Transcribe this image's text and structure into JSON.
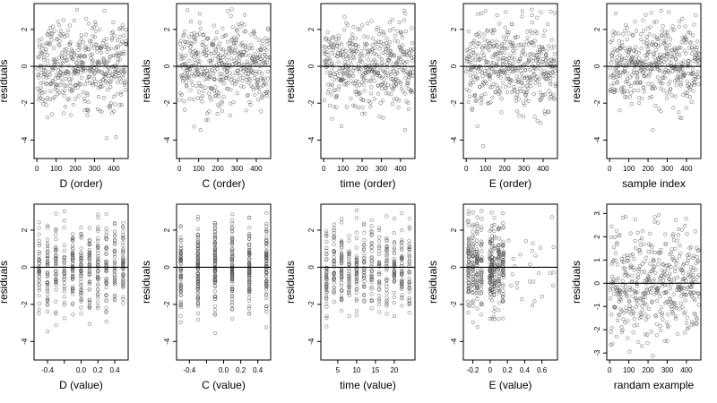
{
  "chart_data": [
    {
      "type": "scatter",
      "xlabel": "D (order)",
      "ylabel": "residuals",
      "xlim": [
        -15,
        475
      ],
      "ylim": [
        -5,
        3.4
      ],
      "xticks": [
        0,
        100,
        200,
        300,
        400
      ],
      "yticks": [
        -4,
        -2,
        0,
        2
      ],
      "hline": 0,
      "sim": {
        "kind": "index",
        "n": 450
      }
    },
    {
      "type": "scatter",
      "xlabel": "C (order)",
      "ylabel": "residuals",
      "xlim": [
        -15,
        475
      ],
      "ylim": [
        -5,
        3.4
      ],
      "xticks": [
        0,
        100,
        200,
        300,
        400
      ],
      "yticks": [
        -4,
        -2,
        0,
        2
      ],
      "hline": 0,
      "sim": {
        "kind": "index",
        "n": 450
      }
    },
    {
      "type": "scatter",
      "xlabel": "time (order)",
      "ylabel": "residuals",
      "xlim": [
        -15,
        475
      ],
      "ylim": [
        -5,
        3.4
      ],
      "xticks": [
        0,
        100,
        200,
        300,
        400
      ],
      "yticks": [
        -4,
        -2,
        0,
        2
      ],
      "hline": 0,
      "sim": {
        "kind": "index",
        "n": 450
      }
    },
    {
      "type": "scatter",
      "xlabel": "E (order)",
      "ylabel": "residuals",
      "xlim": [
        -15,
        475
      ],
      "ylim": [
        -5,
        3.4
      ],
      "xticks": [
        0,
        100,
        200,
        300,
        400
      ],
      "yticks": [
        -4,
        -2,
        0,
        2
      ],
      "hline": 0,
      "sim": {
        "kind": "index",
        "n": 450
      }
    },
    {
      "type": "scatter",
      "xlabel": "sample index",
      "ylabel": "residuals",
      "xlim": [
        -15,
        475
      ],
      "ylim": [
        -5,
        3.4
      ],
      "xticks": [
        0,
        100,
        200,
        300,
        400
      ],
      "yticks": [
        -4,
        -2,
        0,
        2
      ],
      "hline": 0,
      "sim": {
        "kind": "index",
        "n": 450
      }
    },
    {
      "type": "scatter",
      "xlabel": "D (value)",
      "ylabel": "residuals",
      "xlim": [
        -0.56,
        0.56
      ],
      "ylim": [
        -5,
        3.4
      ],
      "xticks": [
        -0.4,
        -0.2,
        0.0,
        0.2,
        0.4
      ],
      "xtick_labels": [
        "-0.4",
        "",
        "0.0",
        "0.2",
        "0.4"
      ],
      "yticks": [
        -4,
        -2,
        0,
        2
      ],
      "hline": 0,
      "sim": {
        "kind": "levels",
        "n": 450,
        "levels": [
          -0.5,
          -0.4,
          -0.3,
          -0.2,
          -0.1,
          0.0,
          0.1,
          0.2,
          0.3,
          0.4,
          0.5
        ]
      }
    },
    {
      "type": "scatter",
      "xlabel": "C (value)",
      "ylabel": "residuals",
      "xlim": [
        -0.55,
        0.55
      ],
      "ylim": [
        -5,
        3.4
      ],
      "xticks": [
        -0.4,
        -0.2,
        0.0,
        0.2,
        0.4
      ],
      "xtick_labels": [
        "-0.4",
        "",
        "0.0",
        "0.2",
        "0.4"
      ],
      "yticks": [
        -4,
        -2,
        0,
        2
      ],
      "hline": 0,
      "sim": {
        "kind": "levels",
        "n": 450,
        "levels": [
          -0.5,
          -0.3,
          -0.1,
          0.1,
          0.3,
          0.5
        ]
      }
    },
    {
      "type": "scatter",
      "xlabel": "time (value)",
      "ylabel": "residuals",
      "xlim": [
        0.5,
        25.5
      ],
      "ylim": [
        -5,
        3.4
      ],
      "xticks": [
        5,
        10,
        15,
        20
      ],
      "yticks": [
        -4,
        -2,
        0,
        2
      ],
      "hline": 0,
      "sim": {
        "kind": "levels",
        "n": 450,
        "levels": [
          2,
          4,
          6,
          8,
          10,
          12,
          14,
          16,
          18,
          20,
          22,
          24
        ]
      }
    },
    {
      "type": "scatter",
      "xlabel": "E (value)",
      "ylabel": "residuals",
      "xlim": [
        -0.31,
        0.78
      ],
      "ylim": [
        -5,
        3.4
      ],
      "xticks": [
        -0.2,
        0.0,
        0.2,
        0.4,
        0.6
      ],
      "yticks": [
        -4,
        -2,
        0,
        2
      ],
      "hline": 0,
      "sim": {
        "kind": "clustered",
        "n": 450
      }
    },
    {
      "type": "scatter",
      "xlabel": "randam example",
      "ylabel": "residuals",
      "xlim": [
        -15,
        475
      ],
      "ylim": [
        -3.3,
        3.4
      ],
      "xticks": [
        0,
        100,
        200,
        300,
        400
      ],
      "yticks": [
        -3,
        -2,
        -1,
        0,
        1,
        2,
        3
      ],
      "hline": 0,
      "sim": {
        "kind": "index",
        "n": 450
      }
    }
  ]
}
